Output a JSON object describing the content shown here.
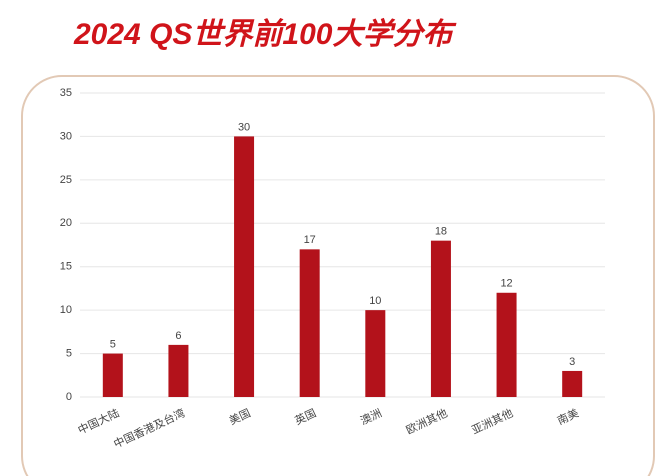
{
  "chart_data": {
    "type": "bar",
    "title": "2024 QS世界前100大学分布",
    "categories": [
      "中国大陆",
      "中国香港及台湾",
      "美国",
      "英国",
      "澳洲",
      "欧洲其他",
      "亚洲其他",
      "南美"
    ],
    "values": [
      5,
      6,
      30,
      17,
      10,
      18,
      12,
      3
    ],
    "color": "#b3121b",
    "ylim": [
      0,
      35
    ],
    "yticks": [
      0,
      5,
      10,
      15,
      20,
      25,
      30,
      35
    ],
    "grid": true,
    "show_value_labels": true
  }
}
